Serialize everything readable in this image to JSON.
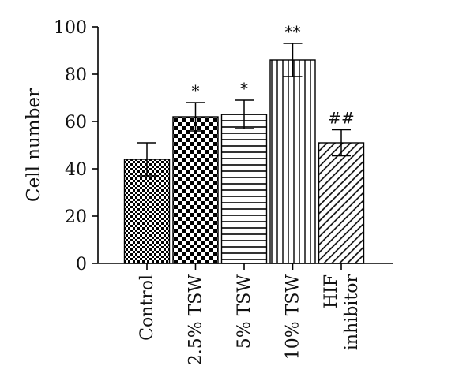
{
  "chart_data": {
    "type": "bar",
    "title": "",
    "xlabel": "",
    "ylabel": "Cell number",
    "ylim": [
      0,
      100
    ],
    "yticks": [
      0,
      20,
      40,
      60,
      80,
      100
    ],
    "grid": false,
    "legend": "none",
    "categories": [
      [
        "Control"
      ],
      [
        "2.5% TSW"
      ],
      [
        "5% TSW"
      ],
      [
        "10% TSW"
      ],
      [
        "HIF",
        "inhibitor"
      ]
    ],
    "values": [
      44,
      62,
      63,
      86,
      51
    ],
    "errors": [
      7,
      6,
      6,
      7,
      5.5
    ],
    "significance": [
      "",
      "*",
      "*",
      "**",
      "##"
    ],
    "patterns": [
      "checker-fine",
      "checker-coarse",
      "horizontal-lines",
      "vertical-lines",
      "diagonal-lines"
    ],
    "bar_color": "#000000"
  }
}
